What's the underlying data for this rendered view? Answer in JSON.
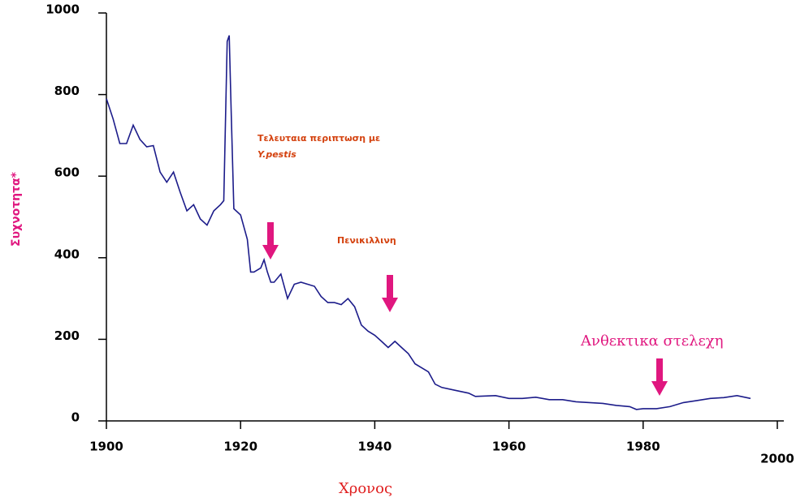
{
  "chart_data": {
    "type": "line",
    "x_label": "Χρονος",
    "y_label": "Συχνοτητα*",
    "annotations": [
      "Τελευταια περιπτωση με",
      "Y.pestis",
      "Πενικιλλινη",
      "Ανθεκτικα στελεχη"
    ],
    "x": [
      1900,
      1901,
      1902,
      1903,
      1904,
      1905,
      1906,
      1907,
      1908,
      1909,
      1910,
      1911,
      1912,
      1913,
      1914,
      1915,
      1916,
      1917,
      1917.5,
      1918,
      1918.3,
      1918.6,
      1919,
      1920,
      1921,
      1921.5,
      1922,
      1923,
      1923.5,
      1924,
      1924.5,
      1925,
      1926,
      1927,
      1928,
      1929,
      1930,
      1931,
      1932,
      1933,
      1934,
      1935,
      1936,
      1937,
      1938,
      1939,
      1940,
      1941,
      1942,
      1943,
      1944,
      1945,
      1946,
      1947,
      1948,
      1949,
      1950,
      1952,
      1954,
      1955,
      1958,
      1960,
      1962,
      1964,
      1966,
      1968,
      1970,
      1972,
      1974,
      1976,
      1978,
      1979,
      1980,
      1982,
      1984,
      1986,
      1988,
      1990,
      1992,
      1994,
      1996
    ],
    "series": [
      {
        "color": "#1c1c8a",
        "values": [
          790,
          740,
          680,
          680,
          725,
          690,
          672,
          675,
          610,
          585,
          610,
          560,
          515,
          530,
          495,
          480,
          515,
          530,
          540,
          930,
          945,
          760,
          520,
          505,
          445,
          365,
          365,
          375,
          395,
          365,
          340,
          340,
          360,
          300,
          335,
          340,
          335,
          330,
          305,
          290,
          290,
          285,
          300,
          280,
          235,
          220,
          210,
          195,
          180,
          195,
          180,
          165,
          140,
          130,
          120,
          90,
          82,
          75,
          68,
          60,
          62,
          55,
          55,
          58,
          52,
          52,
          47,
          45,
          43,
          38,
          35,
          28,
          30,
          30,
          35,
          45,
          50,
          55,
          57,
          62,
          55
        ]
      }
    ],
    "xlim": [
      1900,
      2000
    ],
    "ylim": [
      0,
      1000
    ],
    "xticks": [
      1900,
      1920,
      1940,
      1960,
      1980,
      2000
    ],
    "yticks": [
      0,
      200,
      400,
      600,
      800,
      1000
    ]
  }
}
